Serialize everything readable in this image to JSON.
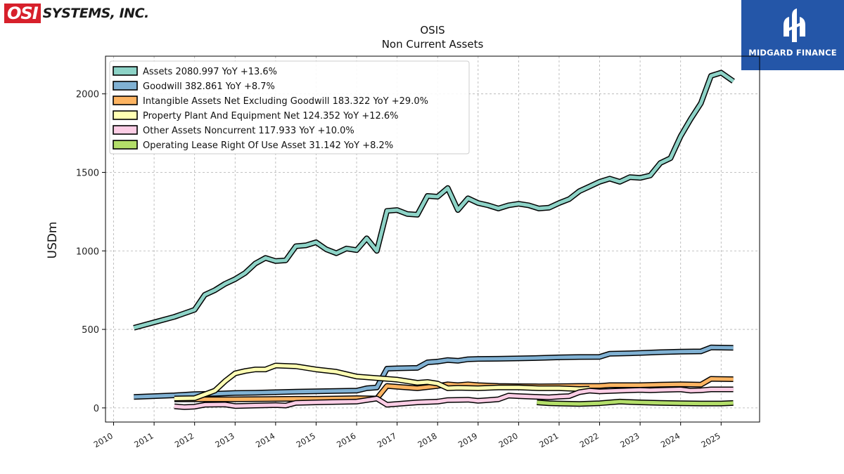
{
  "header": {
    "company_logo_mark": "OSI",
    "company_logo_text": "SYSTEMS, INC.",
    "brand_name": "MIDGARD FINANCE",
    "brand_color": "#2456a8",
    "logo_color": "#d7202b"
  },
  "chart_data": {
    "type": "line",
    "title": "OSIS",
    "subtitle": "Non Current  Assets",
    "ylabel": "USDm",
    "xlabel": "",
    "xlim": [
      2009.8,
      2025.95
    ],
    "ylim": [
      -90,
      2240
    ],
    "yticks": [
      0,
      500,
      1000,
      1500,
      2000
    ],
    "xticks": [
      2010,
      2011,
      2012,
      2013,
      2014,
      2015,
      2016,
      2017,
      2018,
      2019,
      2020,
      2021,
      2022,
      2023,
      2024,
      2025
    ],
    "grid": true,
    "legend_position": "top-left",
    "series": [
      {
        "name": "Assets  2080.997 YoY +13.6%",
        "color": "#8dd3c7",
        "points": [
          [
            2010.5,
            510
          ],
          [
            2011,
            545
          ],
          [
            2011.5,
            580
          ],
          [
            2012,
            625
          ],
          [
            2012.25,
            720
          ],
          [
            2012.5,
            750
          ],
          [
            2012.75,
            790
          ],
          [
            2013,
            820
          ],
          [
            2013.25,
            860
          ],
          [
            2013.5,
            920
          ],
          [
            2013.75,
            955
          ],
          [
            2014,
            935
          ],
          [
            2014.25,
            940
          ],
          [
            2014.5,
            1030
          ],
          [
            2014.75,
            1035
          ],
          [
            2015,
            1055
          ],
          [
            2015.25,
            1010
          ],
          [
            2015.5,
            985
          ],
          [
            2015.75,
            1015
          ],
          [
            2016,
            1005
          ],
          [
            2016.25,
            1080
          ],
          [
            2016.5,
            1000
          ],
          [
            2016.75,
            1255
          ],
          [
            2017,
            1260
          ],
          [
            2017.25,
            1235
          ],
          [
            2017.5,
            1230
          ],
          [
            2017.75,
            1350
          ],
          [
            2018,
            1345
          ],
          [
            2018.25,
            1400
          ],
          [
            2018.5,
            1260
          ],
          [
            2018.75,
            1335
          ],
          [
            2019,
            1305
          ],
          [
            2019.25,
            1290
          ],
          [
            2019.5,
            1270
          ],
          [
            2019.75,
            1290
          ],
          [
            2020,
            1300
          ],
          [
            2020.25,
            1290
          ],
          [
            2020.5,
            1270
          ],
          [
            2020.75,
            1275
          ],
          [
            2021,
            1305
          ],
          [
            2021.25,
            1330
          ],
          [
            2021.5,
            1380
          ],
          [
            2021.75,
            1410
          ],
          [
            2022,
            1440
          ],
          [
            2022.25,
            1460
          ],
          [
            2022.5,
            1440
          ],
          [
            2022.75,
            1470
          ],
          [
            2023,
            1465
          ],
          [
            2023.25,
            1480
          ],
          [
            2023.5,
            1560
          ],
          [
            2023.75,
            1590
          ],
          [
            2024,
            1730
          ],
          [
            2024.25,
            1840
          ],
          [
            2024.5,
            1940
          ],
          [
            2024.75,
            2115
          ],
          [
            2025,
            2135
          ],
          [
            2025.3,
            2081
          ]
        ]
      },
      {
        "name": "Goodwill  382.861 YoY +8.7%",
        "color": "#80b1d3",
        "points": [
          [
            2010.5,
            70
          ],
          [
            2011,
            75
          ],
          [
            2011.5,
            80
          ],
          [
            2012,
            88
          ],
          [
            2012.5,
            90
          ],
          [
            2013,
            95
          ],
          [
            2013.5,
            97
          ],
          [
            2014,
            100
          ],
          [
            2014.5,
            103
          ],
          [
            2015,
            106
          ],
          [
            2015.5,
            108
          ],
          [
            2016,
            110
          ],
          [
            2016.25,
            125
          ],
          [
            2016.5,
            130
          ],
          [
            2016.75,
            250
          ],
          [
            2017,
            252
          ],
          [
            2017.5,
            255
          ],
          [
            2017.75,
            290
          ],
          [
            2018,
            295
          ],
          [
            2018.25,
            305
          ],
          [
            2018.5,
            300
          ],
          [
            2018.75,
            310
          ],
          [
            2019,
            312
          ],
          [
            2019.5,
            313
          ],
          [
            2020,
            315
          ],
          [
            2020.5,
            318
          ],
          [
            2021,
            322
          ],
          [
            2021.5,
            324
          ],
          [
            2022,
            325
          ],
          [
            2022.25,
            345
          ],
          [
            2022.75,
            348
          ],
          [
            2023,
            350
          ],
          [
            2023.5,
            355
          ],
          [
            2024,
            358
          ],
          [
            2024.5,
            360
          ],
          [
            2024.75,
            385
          ],
          [
            2025.3,
            383
          ]
        ]
      },
      {
        "name": "Intangible Assets Net Excluding Goodwill  183.322 YoY +29.0%",
        "color": "#fdb462",
        "points": [
          [
            2011.5,
            55
          ],
          [
            2012,
            55
          ],
          [
            2012.5,
            55
          ],
          [
            2013,
            55
          ],
          [
            2013.5,
            56
          ],
          [
            2014,
            57
          ],
          [
            2014.5,
            58
          ],
          [
            2015,
            58
          ],
          [
            2015.5,
            60
          ],
          [
            2016,
            62
          ],
          [
            2016.5,
            60
          ],
          [
            2016.75,
            140
          ],
          [
            2017,
            135
          ],
          [
            2017.5,
            125
          ],
          [
            2018,
            140
          ],
          [
            2018.25,
            150
          ],
          [
            2018.5,
            145
          ],
          [
            2018.75,
            150
          ],
          [
            2019,
            145
          ],
          [
            2019.5,
            140
          ],
          [
            2020,
            138
          ],
          [
            2020.5,
            137
          ],
          [
            2021,
            138
          ],
          [
            2021.5,
            140
          ],
          [
            2022,
            140
          ],
          [
            2022.25,
            145
          ],
          [
            2023,
            145
          ],
          [
            2023.5,
            148
          ],
          [
            2024,
            150
          ],
          [
            2024.5,
            148
          ],
          [
            2024.75,
            185
          ],
          [
            2025.3,
            183
          ]
        ]
      },
      {
        "name": "Property Plant And Equipment Net  124.352 YoY +12.6%",
        "color": "#ffffb3",
        "points": [
          [
            2011.5,
            60
          ],
          [
            2012,
            62
          ],
          [
            2012.5,
            110
          ],
          [
            2012.75,
            170
          ],
          [
            2013,
            220
          ],
          [
            2013.25,
            235
          ],
          [
            2013.5,
            245
          ],
          [
            2013.75,
            245
          ],
          [
            2014,
            270
          ],
          [
            2014.5,
            265
          ],
          [
            2015,
            245
          ],
          [
            2015.5,
            230
          ],
          [
            2016,
            200
          ],
          [
            2016.5,
            190
          ],
          [
            2017,
            180
          ],
          [
            2017.5,
            160
          ],
          [
            2017.75,
            165
          ],
          [
            2018,
            155
          ],
          [
            2018.25,
            125
          ],
          [
            2018.5,
            128
          ],
          [
            2019,
            125
          ],
          [
            2019.5,
            130
          ],
          [
            2020,
            130
          ],
          [
            2020.5,
            125
          ],
          [
            2021,
            125
          ],
          [
            2021.5,
            120
          ],
          [
            2021.75,
            122
          ]
        ]
      },
      {
        "name": "Other Assets Noncurrent  117.933 YoY +10.0%",
        "color": "#fccde5",
        "points": [
          [
            2011.5,
            10
          ],
          [
            2011.75,
            5
          ],
          [
            2012,
            8
          ],
          [
            2012.25,
            20
          ],
          [
            2012.75,
            22
          ],
          [
            2013,
            12
          ],
          [
            2013.5,
            15
          ],
          [
            2014,
            18
          ],
          [
            2014.25,
            15
          ],
          [
            2014.5,
            32
          ],
          [
            2015,
            35
          ],
          [
            2015.5,
            38
          ],
          [
            2016,
            40
          ],
          [
            2016.5,
            60
          ],
          [
            2016.75,
            20
          ],
          [
            2017,
            25
          ],
          [
            2017.5,
            35
          ],
          [
            2018,
            40
          ],
          [
            2018.25,
            50
          ],
          [
            2018.75,
            52
          ],
          [
            2019,
            45
          ],
          [
            2019.25,
            50
          ],
          [
            2019.5,
            55
          ],
          [
            2019.75,
            78
          ],
          [
            2020,
            75
          ],
          [
            2020.5,
            70
          ],
          [
            2020.75,
            68
          ],
          [
            2021,
            72
          ],
          [
            2021.25,
            75
          ],
          [
            2021.5,
            100
          ],
          [
            2021.75,
            110
          ],
          [
            2022,
            105
          ],
          [
            2022.5,
            110
          ],
          [
            2023,
            115
          ],
          [
            2023.25,
            112
          ],
          [
            2023.5,
            115
          ],
          [
            2024,
            118
          ],
          [
            2024.25,
            110
          ],
          [
            2024.5,
            112
          ],
          [
            2024.75,
            118
          ],
          [
            2025.3,
            118
          ]
        ]
      },
      {
        "name": "Operating Lease Right Of Use Asset  31.142 YoY +8.2%",
        "color": "#b3de69",
        "points": [
          [
            2020.45,
            35
          ],
          [
            2020.75,
            30
          ],
          [
            2021,
            28
          ],
          [
            2021.5,
            25
          ],
          [
            2022,
            30
          ],
          [
            2022.5,
            40
          ],
          [
            2023,
            35
          ],
          [
            2023.5,
            32
          ],
          [
            2024,
            30
          ],
          [
            2024.5,
            28
          ],
          [
            2025,
            28
          ],
          [
            2025.3,
            31
          ]
        ]
      }
    ]
  }
}
